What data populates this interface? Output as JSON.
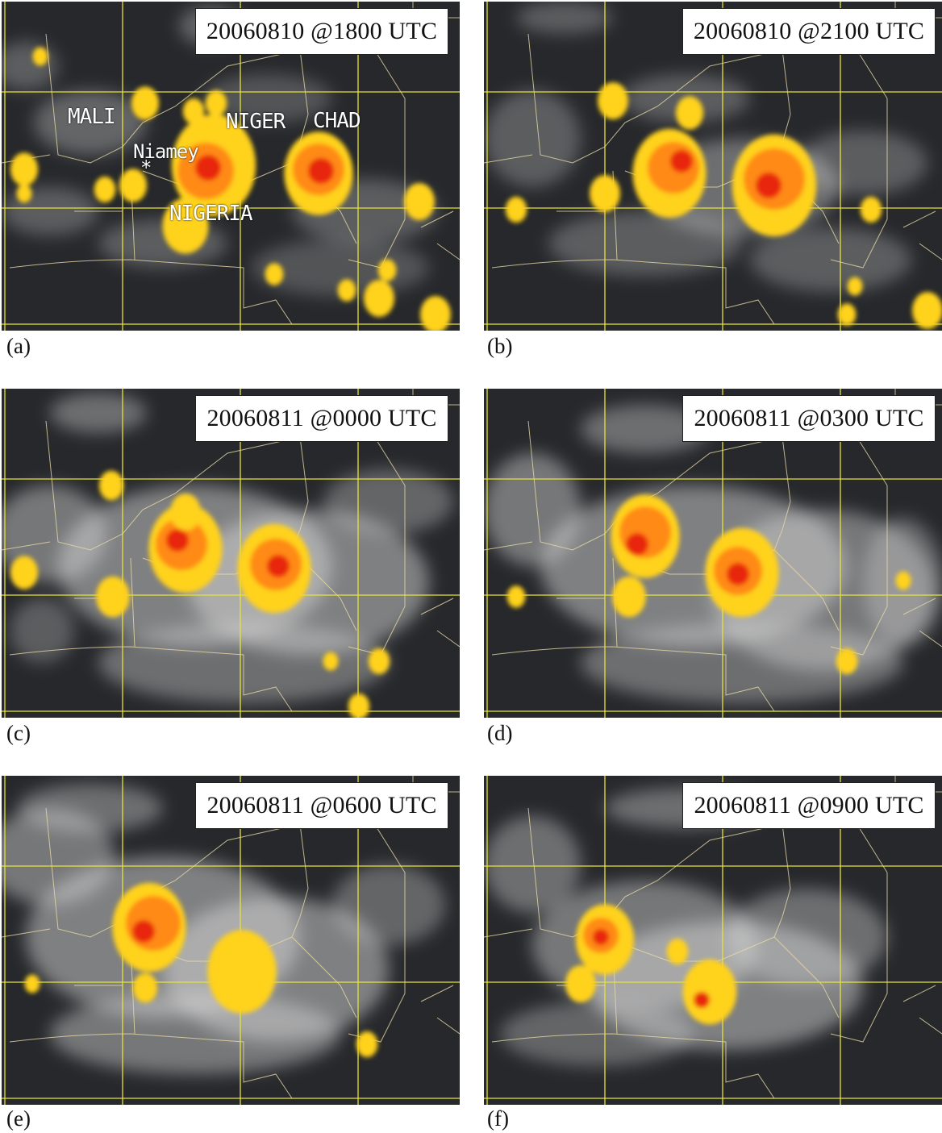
{
  "panels": [
    {
      "id": "a",
      "stamp": "20060810 @1800 UTC",
      "caption": "(a)"
    },
    {
      "id": "b",
      "stamp": "20060810 @2100 UTC",
      "caption": "(b)"
    },
    {
      "id": "c",
      "stamp": "20060811 @0000 UTC",
      "caption": "(c)"
    },
    {
      "id": "d",
      "stamp": "20060811 @0300 UTC",
      "caption": "(d)"
    },
    {
      "id": "e",
      "stamp": "20060811 @0600 UTC",
      "caption": "(e)"
    },
    {
      "id": "f",
      "stamp": "20060811 @0900 UTC",
      "caption": "(f)"
    }
  ],
  "labels": {
    "mali": "MALI",
    "niger": "NIGER",
    "chad": "CHAD",
    "niamey": "Niamey",
    "niamey_marker": "*",
    "nigeria": "NIGERIA"
  },
  "colors": {
    "background_cloud": "#26282b",
    "grid": "#e8e23a",
    "borders": "#e9d9a8",
    "cloud_cold_yellow": "#ffd21a",
    "cloud_colder_orange": "#ff8a12",
    "cloud_coldest_red": "#e8250f"
  }
}
